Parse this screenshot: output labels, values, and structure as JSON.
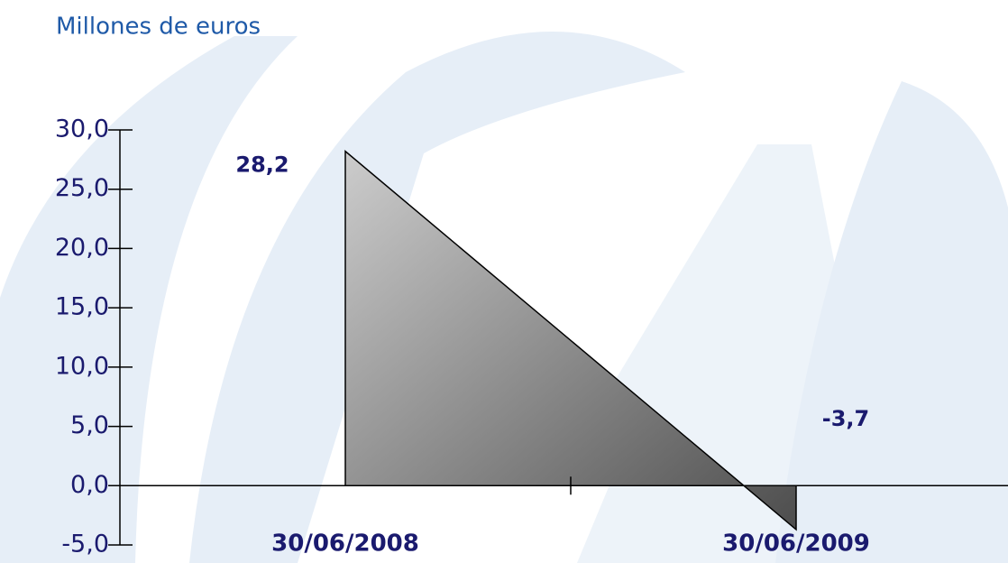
{
  "chart_data": {
    "type": "area",
    "title": "Millones de euros",
    "categories": [
      "30/06/2008",
      "30/06/2009"
    ],
    "values": [
      28.2,
      -3.7
    ],
    "value_labels": [
      "28,2",
      "-3,7"
    ],
    "fill_gradient": [
      "#cccccc",
      "#4d4d4d"
    ],
    "line_color": "#000000",
    "ylim": [
      -5,
      30
    ],
    "yticks": [
      {
        "value": -5,
        "label": "-5,0"
      },
      {
        "value": 0,
        "label": "0,0"
      },
      {
        "value": 5,
        "label": "5,0"
      },
      {
        "value": 10,
        "label": "10,0"
      },
      {
        "value": 15,
        "label": "15,0"
      },
      {
        "value": 20,
        "label": "20,0"
      },
      {
        "value": 25,
        "label": "25,0"
      },
      {
        "value": 30,
        "label": "30,0"
      }
    ]
  }
}
